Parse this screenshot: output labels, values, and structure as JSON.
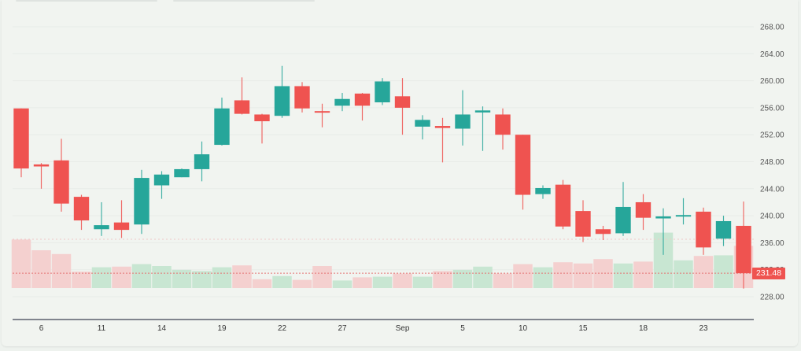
{
  "chart_data": {
    "type": "candlestick",
    "title": "",
    "xlabel": "",
    "ylabel": "",
    "ylim": [
      226.5,
      270
    ],
    "y_ticks": [
      "268.00",
      "264.00",
      "260.00",
      "256.00",
      "252.00",
      "248.00",
      "244.00",
      "240.00",
      "236.00",
      "232.00",
      "228.00"
    ],
    "x_ticks": [
      {
        "label": "6",
        "index": 1
      },
      {
        "label": "11",
        "index": 4
      },
      {
        "label": "14",
        "index": 7
      },
      {
        "label": "19",
        "index": 10
      },
      {
        "label": "22",
        "index": 13
      },
      {
        "label": "27",
        "index": 16
      },
      {
        "label": "Sep",
        "index": 19
      },
      {
        "label": "5",
        "index": 22
      },
      {
        "label": "10",
        "index": 25
      },
      {
        "label": "15",
        "index": 28
      },
      {
        "label": "18",
        "index": 31
      },
      {
        "label": "23",
        "index": 34
      }
    ],
    "last_price": "231.48",
    "colors": {
      "up": "#26a69a",
      "down": "#ef5350",
      "up_volume": "#c8e6d2",
      "down_volume": "#f4d0cf",
      "background": "#f1f4f0"
    },
    "candles": [
      {
        "o": 255.9,
        "h": 255.9,
        "l": 245.7,
        "c": 247.0,
        "v": 37.5
      },
      {
        "o": 247.6,
        "h": 247.8,
        "l": 244.0,
        "c": 247.3,
        "v": 35.8
      },
      {
        "o": 248.2,
        "h": 251.4,
        "l": 240.6,
        "c": 241.8,
        "v": 35.2
      },
      {
        "o": 242.8,
        "h": 243.1,
        "l": 237.9,
        "c": 239.3,
        "v": 32.4
      },
      {
        "o": 238.0,
        "h": 242.0,
        "l": 237.0,
        "c": 238.6,
        "v": 33.1
      },
      {
        "o": 239.0,
        "h": 242.3,
        "l": 236.7,
        "c": 237.9,
        "v": 33.2
      },
      {
        "o": 238.7,
        "h": 246.8,
        "l": 237.3,
        "c": 245.6,
        "v": 33.6
      },
      {
        "o": 244.5,
        "h": 246.6,
        "l": 242.5,
        "c": 246.1,
        "v": 33.3
      },
      {
        "o": 245.7,
        "h": 247.0,
        "l": 245.7,
        "c": 246.9,
        "v": 32.7
      },
      {
        "o": 246.9,
        "h": 251.0,
        "l": 245.1,
        "c": 249.1,
        "v": 32.5
      },
      {
        "o": 250.5,
        "h": 257.5,
        "l": 250.4,
        "c": 255.9,
        "v": 33.1
      },
      {
        "o": 257.1,
        "h": 260.5,
        "l": 255.0,
        "c": 255.1,
        "v": 33.4
      },
      {
        "o": 255.0,
        "h": 255.1,
        "l": 250.7,
        "c": 254.0,
        "v": 31.2
      },
      {
        "o": 254.8,
        "h": 262.2,
        "l": 254.5,
        "c": 259.2,
        "v": 31.7
      },
      {
        "o": 259.2,
        "h": 259.8,
        "l": 255.3,
        "c": 255.9,
        "v": 31.1
      },
      {
        "o": 255.5,
        "h": 256.6,
        "l": 253.1,
        "c": 255.3,
        "v": 33.3
      },
      {
        "o": 256.3,
        "h": 258.2,
        "l": 255.5,
        "c": 257.3,
        "v": 31.0
      },
      {
        "o": 258.1,
        "h": 258.2,
        "l": 254.1,
        "c": 256.3,
        "v": 31.5
      },
      {
        "o": 256.8,
        "h": 260.4,
        "l": 256.4,
        "c": 259.9,
        "v": 31.6
      },
      {
        "o": 257.7,
        "h": 260.4,
        "l": 252.0,
        "c": 256.0,
        "v": 32.1
      },
      {
        "o": 253.2,
        "h": 254.9,
        "l": 251.3,
        "c": 254.2,
        "v": 31.6
      },
      {
        "o": 253.3,
        "h": 254.5,
        "l": 247.9,
        "c": 253.0,
        "v": 32.5
      },
      {
        "o": 252.9,
        "h": 258.6,
        "l": 250.4,
        "c": 255.0,
        "v": 32.7
      },
      {
        "o": 255.3,
        "h": 256.2,
        "l": 249.6,
        "c": 255.6,
        "v": 33.2
      },
      {
        "o": 255.0,
        "h": 255.9,
        "l": 249.8,
        "c": 252.0,
        "v": 32.1
      },
      {
        "o": 252.0,
        "h": 252.0,
        "l": 240.9,
        "c": 243.1,
        "v": 33.6
      },
      {
        "o": 243.2,
        "h": 244.5,
        "l": 242.5,
        "c": 244.1,
        "v": 33.1
      },
      {
        "o": 244.6,
        "h": 245.3,
        "l": 238.0,
        "c": 238.4,
        "v": 33.9
      },
      {
        "o": 240.7,
        "h": 242.3,
        "l": 236.1,
        "c": 236.9,
        "v": 33.7
      },
      {
        "o": 238.0,
        "h": 238.5,
        "l": 236.4,
        "c": 237.3,
        "v": 34.4
      },
      {
        "o": 237.4,
        "h": 245.0,
        "l": 237.0,
        "c": 241.3,
        "v": 33.7
      },
      {
        "o": 242.0,
        "h": 243.2,
        "l": 237.9,
        "c": 239.7,
        "v": 34.0
      },
      {
        "o": 239.6,
        "h": 241.1,
        "l": 234.2,
        "c": 239.9,
        "v": 38.6
      },
      {
        "o": 239.9,
        "h": 242.6,
        "l": 238.7,
        "c": 240.1,
        "v": 34.2
      },
      {
        "o": 240.6,
        "h": 241.2,
        "l": 234.2,
        "c": 235.3,
        "v": 34.9
      },
      {
        "o": 236.6,
        "h": 240.0,
        "l": 235.5,
        "c": 239.2,
        "v": 35.0
      },
      {
        "o": 238.5,
        "h": 242.1,
        "l": 229.2,
        "c": 231.48,
        "v": 36.5
      }
    ]
  }
}
